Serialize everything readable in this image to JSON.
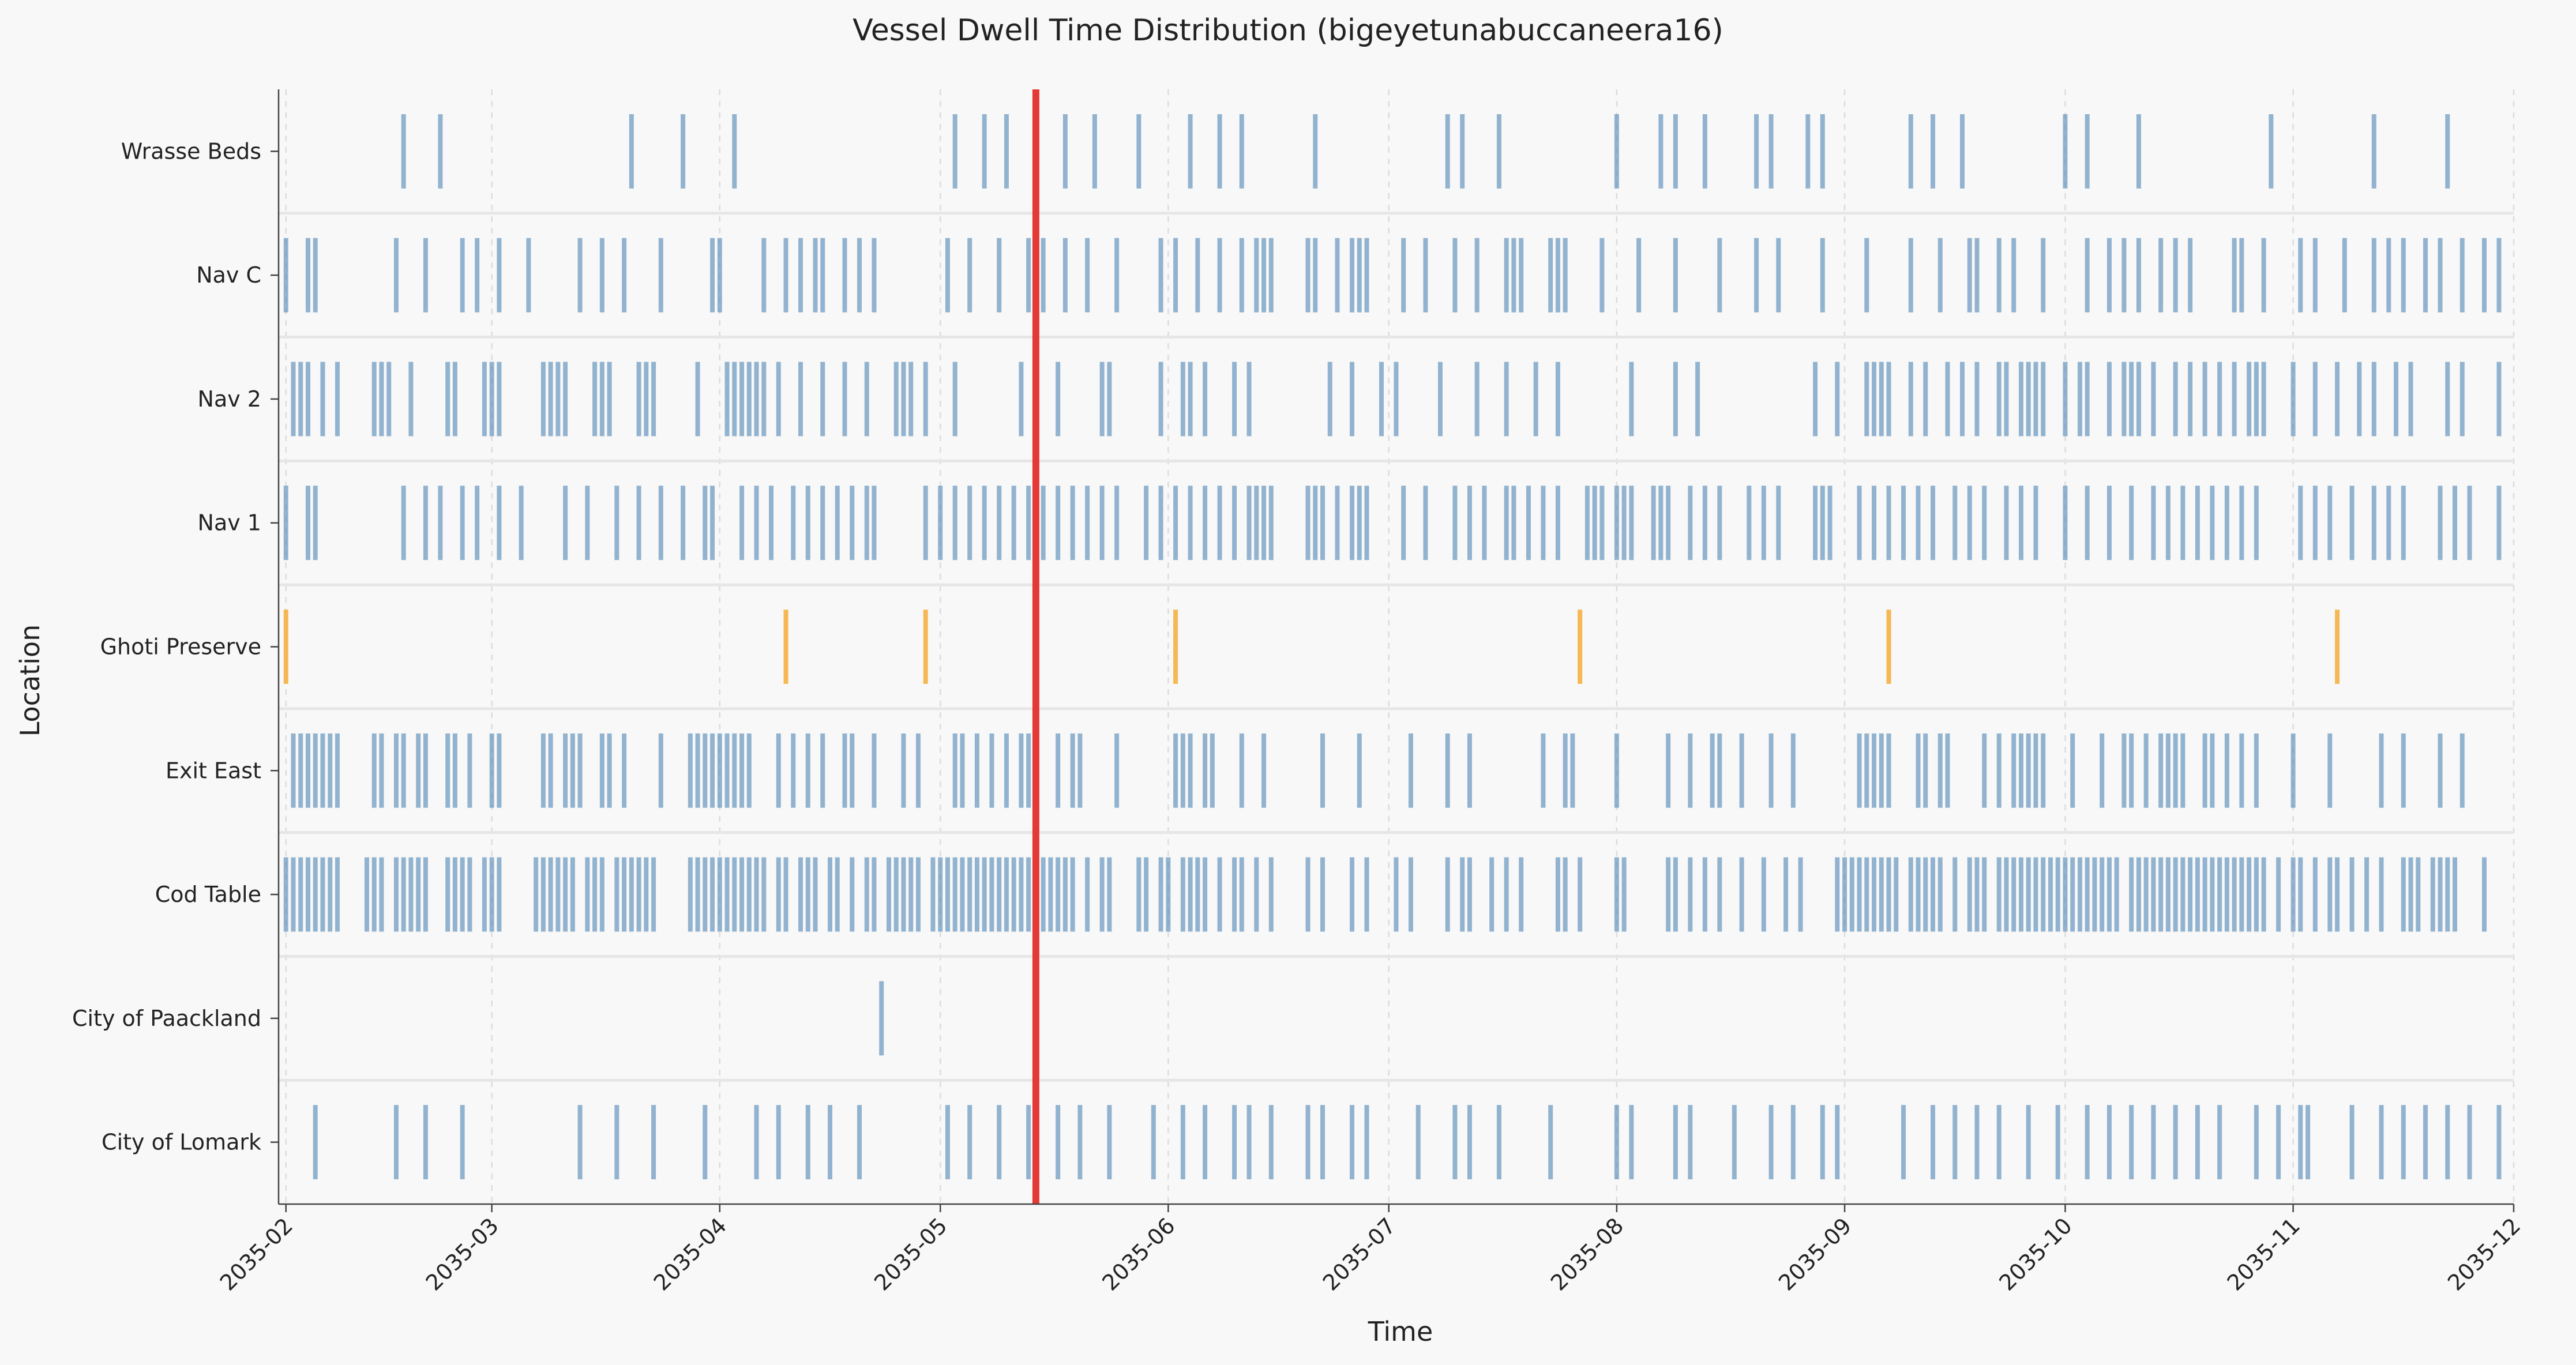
{
  "chart_data": {
    "type": "timeline",
    "title": "Vessel Dwell Time Distribution (bigeyetunabuccaneera16)",
    "xlabel": "Time",
    "ylabel": "Location",
    "x_ticks": [
      "2035-02",
      "2035-03",
      "2035-04",
      "2035-05",
      "2035-06",
      "2035-07",
      "2035-08",
      "2035-09",
      "2035-10",
      "2035-11",
      "2035-12"
    ],
    "xlim": [
      "2035-01-31",
      "2035-12-01"
    ],
    "grid": "x-dashed",
    "colors": {
      "event": "#5b8db8",
      "highlight_event": "#f5b041",
      "marker": "#e53935"
    },
    "current_marker_date": "2035-05-14",
    "locations": [
      "City of Lomark",
      "City of Paackland",
      "Cod Table",
      "Exit East",
      "Ghoti Preserve",
      "Nav 1",
      "Nav 2",
      "Nav C",
      "Wrasse Beds"
    ],
    "events": {
      "Wrasse Beds": [
        "2035-02-17",
        "2035-02-22",
        "2035-03-20",
        "2035-03-27",
        "2035-04-03",
        "2035-05-03",
        "2035-05-07",
        "2035-05-10",
        "2035-05-18",
        "2035-05-22",
        "2035-05-28",
        "2035-06-04",
        "2035-06-08",
        "2035-06-11",
        "2035-06-21",
        "2035-07-09",
        "2035-07-11",
        "2035-07-16",
        "2035-08-01",
        "2035-08-07",
        "2035-08-09",
        "2035-08-13",
        "2035-08-20",
        "2035-08-22",
        "2035-08-27",
        "2035-08-29",
        "2035-09-10",
        "2035-09-13",
        "2035-09-17",
        "2035-10-01",
        "2035-10-04",
        "2035-10-11",
        "2035-10-29",
        "2035-11-12",
        "2035-11-22"
      ],
      "Nav C": [
        "2035-02-01",
        "2035-02-04",
        "2035-02-05",
        "2035-02-16",
        "2035-02-20",
        "2035-02-25",
        "2035-02-27",
        "2035-03-02",
        "2035-03-06",
        "2035-03-13",
        "2035-03-16",
        "2035-03-19",
        "2035-03-24",
        "2035-03-31",
        "2035-04-01",
        "2035-04-07",
        "2035-04-10",
        "2035-04-12",
        "2035-04-14",
        "2035-04-15",
        "2035-04-18",
        "2035-04-20",
        "2035-04-22",
        "2035-05-02",
        "2035-05-05",
        "2035-05-09",
        "2035-05-13",
        "2035-05-15",
        "2035-05-18",
        "2035-05-21",
        "2035-05-25",
        "2035-05-31",
        "2035-06-02",
        "2035-06-05",
        "2035-06-08",
        "2035-06-11",
        "2035-06-13",
        "2035-06-14",
        "2035-06-15",
        "2035-06-20",
        "2035-06-21",
        "2035-06-24",
        "2035-06-26",
        "2035-06-27",
        "2035-06-28",
        "2035-07-03",
        "2035-07-06",
        "2035-07-10",
        "2035-07-13",
        "2035-07-17",
        "2035-07-18",
        "2035-07-19",
        "2035-07-23",
        "2035-07-24",
        "2035-07-25",
        "2035-07-30",
        "2035-08-04",
        "2035-08-09",
        "2035-08-15",
        "2035-08-20",
        "2035-08-23",
        "2035-08-29",
        "2035-09-04",
        "2035-09-10",
        "2035-09-14",
        "2035-09-18",
        "2035-09-19",
        "2035-09-22",
        "2035-09-24",
        "2035-09-28",
        "2035-10-04",
        "2035-10-07",
        "2035-10-09",
        "2035-10-11",
        "2035-10-14",
        "2035-10-16",
        "2035-10-18",
        "2035-10-24",
        "2035-10-25",
        "2035-10-28",
        "2035-11-02",
        "2035-11-04",
        "2035-11-08",
        "2035-11-12",
        "2035-11-14",
        "2035-11-16",
        "2035-11-19",
        "2035-11-21",
        "2035-11-24",
        "2035-11-27",
        "2035-11-29"
      ],
      "Nav 2": [
        "2035-02-02",
        "2035-02-03",
        "2035-02-04",
        "2035-02-06",
        "2035-02-08",
        "2035-02-13",
        "2035-02-14",
        "2035-02-15",
        "2035-02-18",
        "2035-02-23",
        "2035-02-24",
        "2035-02-28",
        "2035-03-01",
        "2035-03-02",
        "2035-03-08",
        "2035-03-09",
        "2035-03-10",
        "2035-03-11",
        "2035-03-15",
        "2035-03-16",
        "2035-03-17",
        "2035-03-21",
        "2035-03-22",
        "2035-03-23",
        "2035-03-29",
        "2035-04-02",
        "2035-04-03",
        "2035-04-04",
        "2035-04-05",
        "2035-04-06",
        "2035-04-07",
        "2035-04-09",
        "2035-04-12",
        "2035-04-15",
        "2035-04-18",
        "2035-04-21",
        "2035-04-25",
        "2035-04-26",
        "2035-04-27",
        "2035-04-29",
        "2035-05-03",
        "2035-05-12",
        "2035-05-17",
        "2035-05-23",
        "2035-05-24",
        "2035-05-31",
        "2035-06-03",
        "2035-06-04",
        "2035-06-06",
        "2035-06-10",
        "2035-06-12",
        "2035-06-23",
        "2035-06-26",
        "2035-06-30",
        "2035-07-02",
        "2035-07-08",
        "2035-07-13",
        "2035-07-17",
        "2035-07-21",
        "2035-07-24",
        "2035-08-03",
        "2035-08-09",
        "2035-08-12",
        "2035-08-28",
        "2035-08-31",
        "2035-09-04",
        "2035-09-05",
        "2035-09-06",
        "2035-09-07",
        "2035-09-10",
        "2035-09-12",
        "2035-09-15",
        "2035-09-17",
        "2035-09-19",
        "2035-09-22",
        "2035-09-23",
        "2035-09-25",
        "2035-09-26",
        "2035-09-27",
        "2035-09-28",
        "2035-10-01",
        "2035-10-03",
        "2035-10-04",
        "2035-10-07",
        "2035-10-09",
        "2035-10-10",
        "2035-10-11",
        "2035-10-13",
        "2035-10-16",
        "2035-10-18",
        "2035-10-20",
        "2035-10-22",
        "2035-10-24",
        "2035-10-26",
        "2035-10-27",
        "2035-10-28",
        "2035-11-01",
        "2035-11-04",
        "2035-11-07",
        "2035-11-10",
        "2035-11-12",
        "2035-11-15",
        "2035-11-17",
        "2035-11-22",
        "2035-11-24",
        "2035-11-29"
      ],
      "Nav 1": [
        "2035-02-01",
        "2035-02-04",
        "2035-02-05",
        "2035-02-17",
        "2035-02-20",
        "2035-02-22",
        "2035-02-25",
        "2035-02-27",
        "2035-03-02",
        "2035-03-05",
        "2035-03-11",
        "2035-03-14",
        "2035-03-18",
        "2035-03-21",
        "2035-03-24",
        "2035-03-27",
        "2035-03-30",
        "2035-03-31",
        "2035-04-04",
        "2035-04-06",
        "2035-04-08",
        "2035-04-11",
        "2035-04-13",
        "2035-04-15",
        "2035-04-17",
        "2035-04-19",
        "2035-04-21",
        "2035-04-22",
        "2035-04-29",
        "2035-05-01",
        "2035-05-03",
        "2035-05-05",
        "2035-05-07",
        "2035-05-09",
        "2035-05-11",
        "2035-05-13",
        "2035-05-15",
        "2035-05-17",
        "2035-05-19",
        "2035-05-21",
        "2035-05-23",
        "2035-05-25",
        "2035-05-29",
        "2035-05-31",
        "2035-06-02",
        "2035-06-04",
        "2035-06-06",
        "2035-06-08",
        "2035-06-10",
        "2035-06-12",
        "2035-06-13",
        "2035-06-14",
        "2035-06-15",
        "2035-06-20",
        "2035-06-21",
        "2035-06-22",
        "2035-06-24",
        "2035-06-26",
        "2035-06-27",
        "2035-06-28",
        "2035-07-03",
        "2035-07-06",
        "2035-07-10",
        "2035-07-12",
        "2035-07-14",
        "2035-07-17",
        "2035-07-18",
        "2035-07-20",
        "2035-07-22",
        "2035-07-24",
        "2035-07-28",
        "2035-07-29",
        "2035-07-30",
        "2035-08-01",
        "2035-08-02",
        "2035-08-03",
        "2035-08-06",
        "2035-08-07",
        "2035-08-08",
        "2035-08-11",
        "2035-08-13",
        "2035-08-15",
        "2035-08-19",
        "2035-08-21",
        "2035-08-23",
        "2035-08-28",
        "2035-08-29",
        "2035-08-30",
        "2035-09-03",
        "2035-09-05",
        "2035-09-07",
        "2035-09-09",
        "2035-09-11",
        "2035-09-13",
        "2035-09-16",
        "2035-09-18",
        "2035-09-20",
        "2035-09-23",
        "2035-09-25",
        "2035-09-27",
        "2035-10-01",
        "2035-10-04",
        "2035-10-07",
        "2035-10-10",
        "2035-10-13",
        "2035-10-15",
        "2035-10-17",
        "2035-10-19",
        "2035-10-21",
        "2035-10-23",
        "2035-10-25",
        "2035-10-27",
        "2035-11-02",
        "2035-11-04",
        "2035-11-06",
        "2035-11-09",
        "2035-11-12",
        "2035-11-14",
        "2035-11-16",
        "2035-11-21",
        "2035-11-23",
        "2035-11-25",
        "2035-11-29"
      ],
      "Ghoti Preserve": [
        "2035-02-01",
        "2035-04-10",
        "2035-04-29",
        "2035-06-02",
        "2035-07-27",
        "2035-09-07",
        "2035-11-07"
      ],
      "Exit East": [
        "2035-02-02",
        "2035-02-03",
        "2035-02-04",
        "2035-02-05",
        "2035-02-06",
        "2035-02-07",
        "2035-02-08",
        "2035-02-13",
        "2035-02-14",
        "2035-02-16",
        "2035-02-17",
        "2035-02-19",
        "2035-02-20",
        "2035-02-23",
        "2035-02-24",
        "2035-02-26",
        "2035-03-01",
        "2035-03-02",
        "2035-03-08",
        "2035-03-09",
        "2035-03-11",
        "2035-03-12",
        "2035-03-13",
        "2035-03-16",
        "2035-03-17",
        "2035-03-19",
        "2035-03-24",
        "2035-03-28",
        "2035-03-29",
        "2035-03-30",
        "2035-03-31",
        "2035-04-01",
        "2035-04-02",
        "2035-04-03",
        "2035-04-04",
        "2035-04-05",
        "2035-04-09",
        "2035-04-11",
        "2035-04-13",
        "2035-04-15",
        "2035-04-18",
        "2035-04-19",
        "2035-04-22",
        "2035-04-26",
        "2035-04-28",
        "2035-05-03",
        "2035-05-04",
        "2035-05-06",
        "2035-05-08",
        "2035-05-10",
        "2035-05-12",
        "2035-05-13",
        "2035-05-17",
        "2035-05-19",
        "2035-05-20",
        "2035-05-25",
        "2035-06-02",
        "2035-06-03",
        "2035-06-04",
        "2035-06-06",
        "2035-06-07",
        "2035-06-11",
        "2035-06-14",
        "2035-06-22",
        "2035-06-27",
        "2035-07-04",
        "2035-07-09",
        "2035-07-12",
        "2035-07-22",
        "2035-07-25",
        "2035-07-26",
        "2035-08-01",
        "2035-08-08",
        "2035-08-11",
        "2035-08-14",
        "2035-08-15",
        "2035-08-18",
        "2035-08-22",
        "2035-08-25",
        "2035-09-03",
        "2035-09-04",
        "2035-09-05",
        "2035-09-06",
        "2035-09-07",
        "2035-09-11",
        "2035-09-12",
        "2035-09-14",
        "2035-09-15",
        "2035-09-20",
        "2035-09-22",
        "2035-09-24",
        "2035-09-25",
        "2035-09-26",
        "2035-09-27",
        "2035-09-28",
        "2035-10-02",
        "2035-10-06",
        "2035-10-09",
        "2035-10-10",
        "2035-10-12",
        "2035-10-14",
        "2035-10-15",
        "2035-10-16",
        "2035-10-17",
        "2035-10-20",
        "2035-10-21",
        "2035-10-23",
        "2035-10-25",
        "2035-10-27",
        "2035-11-01",
        "2035-11-06",
        "2035-11-13",
        "2035-11-16",
        "2035-11-21",
        "2035-11-24"
      ],
      "Cod Table": [
        "2035-02-01",
        "2035-02-02",
        "2035-02-03",
        "2035-02-04",
        "2035-02-05",
        "2035-02-06",
        "2035-02-07",
        "2035-02-08",
        "2035-02-12",
        "2035-02-13",
        "2035-02-14",
        "2035-02-16",
        "2035-02-17",
        "2035-02-18",
        "2035-02-19",
        "2035-02-20",
        "2035-02-23",
        "2035-02-24",
        "2035-02-25",
        "2035-02-26",
        "2035-02-28",
        "2035-03-01",
        "2035-03-02",
        "2035-03-07",
        "2035-03-08",
        "2035-03-09",
        "2035-03-10",
        "2035-03-11",
        "2035-03-12",
        "2035-03-14",
        "2035-03-15",
        "2035-03-16",
        "2035-03-18",
        "2035-03-19",
        "2035-03-20",
        "2035-03-21",
        "2035-03-22",
        "2035-03-23",
        "2035-03-28",
        "2035-03-29",
        "2035-03-30",
        "2035-03-31",
        "2035-04-01",
        "2035-04-02",
        "2035-04-03",
        "2035-04-04",
        "2035-04-05",
        "2035-04-06",
        "2035-04-07",
        "2035-04-09",
        "2035-04-10",
        "2035-04-12",
        "2035-04-13",
        "2035-04-14",
        "2035-04-16",
        "2035-04-17",
        "2035-04-19",
        "2035-04-21",
        "2035-04-22",
        "2035-04-24",
        "2035-04-25",
        "2035-04-26",
        "2035-04-27",
        "2035-04-28",
        "2035-04-30",
        "2035-05-01",
        "2035-05-02",
        "2035-05-03",
        "2035-05-04",
        "2035-05-05",
        "2035-05-06",
        "2035-05-07",
        "2035-05-08",
        "2035-05-09",
        "2035-05-10",
        "2035-05-11",
        "2035-05-12",
        "2035-05-13",
        "2035-05-15",
        "2035-05-16",
        "2035-05-17",
        "2035-05-18",
        "2035-05-19",
        "2035-05-21",
        "2035-05-23",
        "2035-05-24",
        "2035-05-28",
        "2035-05-29",
        "2035-05-31",
        "2035-06-01",
        "2035-06-03",
        "2035-06-04",
        "2035-06-05",
        "2035-06-06",
        "2035-06-08",
        "2035-06-10",
        "2035-06-11",
        "2035-06-13",
        "2035-06-15",
        "2035-06-20",
        "2035-06-22",
        "2035-06-26",
        "2035-06-28",
        "2035-07-02",
        "2035-07-04",
        "2035-07-09",
        "2035-07-11",
        "2035-07-12",
        "2035-07-15",
        "2035-07-17",
        "2035-07-19",
        "2035-07-24",
        "2035-07-25",
        "2035-07-27",
        "2035-08-01",
        "2035-08-02",
        "2035-08-08",
        "2035-08-09",
        "2035-08-11",
        "2035-08-13",
        "2035-08-15",
        "2035-08-18",
        "2035-08-21",
        "2035-08-24",
        "2035-08-26",
        "2035-08-31",
        "2035-09-01",
        "2035-09-02",
        "2035-09-03",
        "2035-09-04",
        "2035-09-05",
        "2035-09-06",
        "2035-09-07",
        "2035-09-08",
        "2035-09-10",
        "2035-09-11",
        "2035-09-12",
        "2035-09-13",
        "2035-09-14",
        "2035-09-16",
        "2035-09-18",
        "2035-09-19",
        "2035-09-20",
        "2035-09-22",
        "2035-09-23",
        "2035-09-24",
        "2035-09-25",
        "2035-09-26",
        "2035-09-27",
        "2035-09-28",
        "2035-09-29",
        "2035-09-30",
        "2035-10-01",
        "2035-10-02",
        "2035-10-03",
        "2035-10-04",
        "2035-10-05",
        "2035-10-06",
        "2035-10-07",
        "2035-10-08",
        "2035-10-10",
        "2035-10-11",
        "2035-10-12",
        "2035-10-13",
        "2035-10-14",
        "2035-10-15",
        "2035-10-16",
        "2035-10-17",
        "2035-10-18",
        "2035-10-19",
        "2035-10-20",
        "2035-10-21",
        "2035-10-22",
        "2035-10-23",
        "2035-10-24",
        "2035-10-25",
        "2035-10-26",
        "2035-10-27",
        "2035-10-28",
        "2035-10-30",
        "2035-11-01",
        "2035-11-02",
        "2035-11-04",
        "2035-11-06",
        "2035-11-07",
        "2035-11-09",
        "2035-11-11",
        "2035-11-13",
        "2035-11-16",
        "2035-11-17",
        "2035-11-18",
        "2035-11-20",
        "2035-11-21",
        "2035-11-22",
        "2035-11-23",
        "2035-11-27"
      ],
      "City of Paackland": [
        "2035-04-23"
      ],
      "City of Lomark": [
        "2035-02-05",
        "2035-02-16",
        "2035-02-20",
        "2035-02-25",
        "2035-03-13",
        "2035-03-18",
        "2035-03-23",
        "2035-03-30",
        "2035-04-06",
        "2035-04-09",
        "2035-04-13",
        "2035-04-16",
        "2035-04-20",
        "2035-05-02",
        "2035-05-05",
        "2035-05-09",
        "2035-05-13",
        "2035-05-17",
        "2035-05-20",
        "2035-05-24",
        "2035-05-30",
        "2035-06-03",
        "2035-06-06",
        "2035-06-10",
        "2035-06-12",
        "2035-06-15",
        "2035-06-20",
        "2035-06-22",
        "2035-06-26",
        "2035-06-28",
        "2035-07-05",
        "2035-07-10",
        "2035-07-12",
        "2035-07-16",
        "2035-07-23",
        "2035-08-01",
        "2035-08-03",
        "2035-08-09",
        "2035-08-11",
        "2035-08-17",
        "2035-08-22",
        "2035-08-25",
        "2035-08-29",
        "2035-08-31",
        "2035-09-09",
        "2035-09-13",
        "2035-09-16",
        "2035-09-19",
        "2035-09-22",
        "2035-09-26",
        "2035-09-30",
        "2035-10-04",
        "2035-10-07",
        "2035-10-10",
        "2035-10-13",
        "2035-10-16",
        "2035-10-19",
        "2035-10-22",
        "2035-10-27",
        "2035-10-30",
        "2035-11-02",
        "2035-11-03",
        "2035-11-09",
        "2035-11-13",
        "2035-11-16",
        "2035-11-19",
        "2035-11-22",
        "2035-11-25",
        "2035-11-29"
      ]
    }
  }
}
